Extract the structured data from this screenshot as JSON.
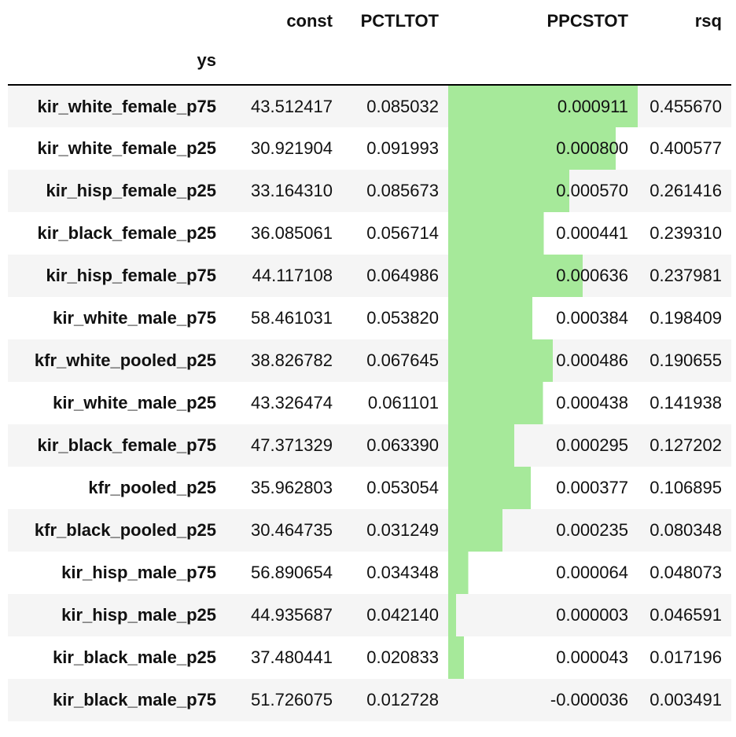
{
  "table": {
    "columns": [
      "const",
      "PCTLTOT",
      "PPCSTOT",
      "rsq"
    ],
    "index_name": "ys",
    "bar_color": "#a6e99a",
    "bar_column": "PPCSTOT",
    "bar_range": [
      -3.6e-05,
      0.000911
    ],
    "rows": [
      {
        "label": "kir_white_female_p75",
        "const": "43.512417",
        "PCTLTOT": "0.085032",
        "PPCSTOT": "0.000911",
        "rsq": "0.455670",
        "bar_value": 0.000911
      },
      {
        "label": "kir_white_female_p25",
        "const": "30.921904",
        "PCTLTOT": "0.091993",
        "PPCSTOT": "0.000800",
        "rsq": "0.400577",
        "bar_value": 0.0008
      },
      {
        "label": "kir_hisp_female_p25",
        "const": "33.164310",
        "PCTLTOT": "0.085673",
        "PPCSTOT": "0.000570",
        "rsq": "0.261416",
        "bar_value": 0.00057
      },
      {
        "label": "kir_black_female_p25",
        "const": "36.085061",
        "PCTLTOT": "0.056714",
        "PPCSTOT": "0.000441",
        "rsq": "0.239310",
        "bar_value": 0.000441
      },
      {
        "label": "kir_hisp_female_p75",
        "const": "44.117108",
        "PCTLTOT": "0.064986",
        "PPCSTOT": "0.000636",
        "rsq": "0.237981",
        "bar_value": 0.000636
      },
      {
        "label": "kir_white_male_p75",
        "const": "58.461031",
        "PCTLTOT": "0.053820",
        "PPCSTOT": "0.000384",
        "rsq": "0.198409",
        "bar_value": 0.000384
      },
      {
        "label": "kfr_white_pooled_p25",
        "const": "38.826782",
        "PCTLTOT": "0.067645",
        "PPCSTOT": "0.000486",
        "rsq": "0.190655",
        "bar_value": 0.000486
      },
      {
        "label": "kir_white_male_p25",
        "const": "43.326474",
        "PCTLTOT": "0.061101",
        "PPCSTOT": "0.000438",
        "rsq": "0.141938",
        "bar_value": 0.000438
      },
      {
        "label": "kir_black_female_p75",
        "const": "47.371329",
        "PCTLTOT": "0.063390",
        "PPCSTOT": "0.000295",
        "rsq": "0.127202",
        "bar_value": 0.000295
      },
      {
        "label": "kfr_pooled_p25",
        "const": "35.962803",
        "PCTLTOT": "0.053054",
        "PPCSTOT": "0.000377",
        "rsq": "0.106895",
        "bar_value": 0.000377
      },
      {
        "label": "kfr_black_pooled_p25",
        "const": "30.464735",
        "PCTLTOT": "0.031249",
        "PPCSTOT": "0.000235",
        "rsq": "0.080348",
        "bar_value": 0.000235
      },
      {
        "label": "kir_hisp_male_p75",
        "const": "56.890654",
        "PCTLTOT": "0.034348",
        "PPCSTOT": "0.000064",
        "rsq": "0.048073",
        "bar_value": 6.4e-05
      },
      {
        "label": "kir_hisp_male_p25",
        "const": "44.935687",
        "PCTLTOT": "0.042140",
        "PPCSTOT": "0.000003",
        "rsq": "0.046591",
        "bar_value": 3e-06
      },
      {
        "label": "kir_black_male_p25",
        "const": "37.480441",
        "PCTLTOT": "0.020833",
        "PPCSTOT": "0.000043",
        "rsq": "0.017196",
        "bar_value": 4.3e-05
      },
      {
        "label": "kir_black_male_p75",
        "const": "51.726075",
        "PCTLTOT": "0.012728",
        "PPCSTOT": "-0.000036",
        "rsq": "0.003491",
        "bar_value": -3.6e-05
      }
    ]
  }
}
